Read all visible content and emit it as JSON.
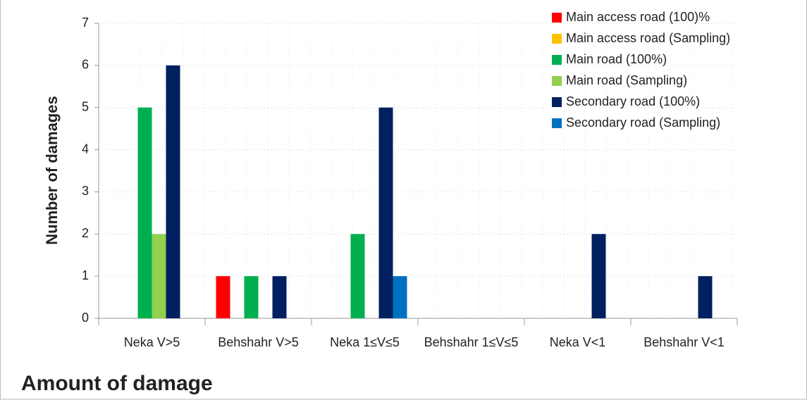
{
  "chart_data": {
    "type": "bar",
    "x_label": "Amount of damage",
    "y_label": "Number of damages",
    "categories": [
      "Neka V>5",
      "Behshahr V>5",
      "Neka 1≤V≤5",
      "Behshahr 1≤V≤5",
      "Neka V<1",
      "Behshahr V<1"
    ],
    "series": [
      {
        "name": "Main access road (100)%",
        "color": "#ff0000",
        "values": [
          0,
          1,
          0,
          0,
          0,
          0
        ]
      },
      {
        "name": "Main access road (Sampling)",
        "color": "#ffc000",
        "values": [
          0,
          0,
          0,
          0,
          0,
          0
        ]
      },
      {
        "name": "Main road (100%)",
        "color": "#00b050",
        "values": [
          5,
          1,
          2,
          0,
          0,
          0
        ]
      },
      {
        "name": "Main road (Sampling)",
        "color": "#92d050",
        "values": [
          2,
          0,
          0,
          0,
          0,
          0
        ]
      },
      {
        "name": "Secondary road (100%)",
        "color": "#002060",
        "values": [
          6,
          1,
          5,
          0,
          2,
          1
        ]
      },
      {
        "name": "Secondary road (Sampling)",
        "color": "#0070c0",
        "values": [
          0,
          0,
          1,
          0,
          0,
          0
        ]
      }
    ],
    "ylim": [
      0,
      7
    ],
    "yticks": [
      0,
      1,
      2,
      3,
      4,
      5,
      6,
      7
    ],
    "grid": true,
    "legend": "top-right"
  }
}
